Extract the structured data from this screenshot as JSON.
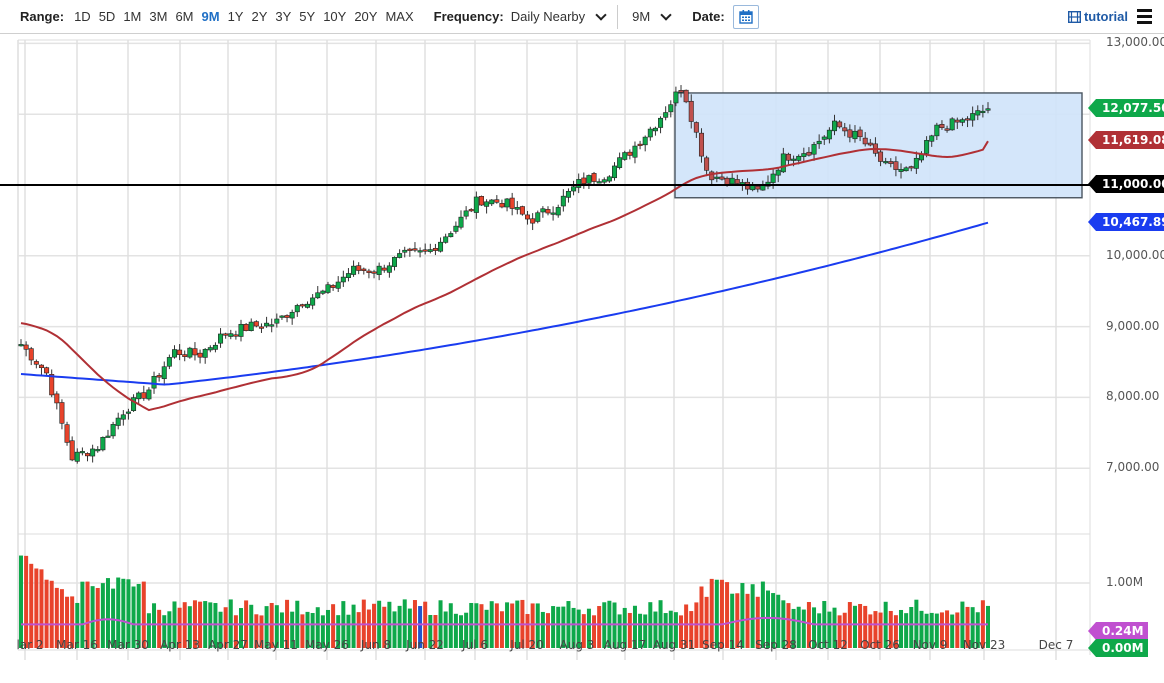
{
  "toolbar": {
    "range_label": "Range:",
    "ranges": [
      "1D",
      "5D",
      "1M",
      "3M",
      "6M",
      "9M",
      "1Y",
      "2Y",
      "3Y",
      "5Y",
      "10Y",
      "20Y",
      "MAX"
    ],
    "active_range": "9M",
    "frequency_label": "Frequency:",
    "frequency_value": "Daily Nearby",
    "period_value": "9M",
    "date_label": "Date:",
    "tutorial_label": "tutorial",
    "icons": {
      "calendar": "calendar-icon",
      "tutorial": "film-icon",
      "menu": "hamburger-menu-icon"
    }
  },
  "colors": {
    "up": "#0ea84a",
    "down": "#e8432b",
    "ma_short": "#b03035",
    "ma_long": "#1a3cf0",
    "support_line": "#000000",
    "box_fill": "#cfe3fa",
    "box_border": "#4a5560",
    "volume_avg": "#c050d0",
    "last_price_tag": "#0ea84a",
    "ma_short_tag": "#b03035",
    "support_tag": "#000000",
    "ma_long_tag": "#1a3cf0",
    "vol_avg_tag": "#c050d0",
    "vol_tag": "#0ea84a"
  },
  "chart_data": {
    "type": "candlestick",
    "title": "",
    "xlabel": "",
    "ylabel": "",
    "ylim": [
      6500,
      13000
    ],
    "y_ticks": [
      "13,000.00",
      "12,000.00",
      "11,000.00",
      "10,000.00",
      "9,000.00",
      "8,000.00",
      "7,000.00"
    ],
    "x_ticks": [
      "Mar 2",
      "Mar 16",
      "Mar 30",
      "Apr 13",
      "Apr 27",
      "May 11",
      "May 26",
      "Jun 8",
      "Jun 22",
      "Jul 6",
      "Jul 20",
      "Aug 3",
      "Aug 17",
      "Aug 31",
      "Sep 14",
      "Sep 28",
      "Oct 12",
      "Oct 26",
      "Nov 9",
      "Nov 23",
      "Dec 7"
    ],
    "grid": true,
    "price_tags": {
      "last_price": "12,077.50",
      "ma_short": "11,619.08",
      "support": "11,000.00",
      "ma_long": "10,467.89"
    },
    "support_level": 11000,
    "range_box": {
      "start": "Aug 31",
      "end": "Dec 10",
      "low": 10820,
      "high": 12300
    },
    "close_series_weekly": [
      {
        "date": "Mar 2",
        "close": 8750
      },
      {
        "date": "Mar 9",
        "close": 8350
      },
      {
        "date": "Mar 16",
        "close": 7150
      },
      {
        "date": "Mar 23",
        "close": 7300
      },
      {
        "date": "Mar 30",
        "close": 7800
      },
      {
        "date": "Apr 6",
        "close": 8100
      },
      {
        "date": "Apr 13",
        "close": 8650
      },
      {
        "date": "Apr 20",
        "close": 8600
      },
      {
        "date": "Apr 27",
        "close": 8900
      },
      {
        "date": "May 4",
        "close": 9000
      },
      {
        "date": "May 11",
        "close": 9050
      },
      {
        "date": "May 18",
        "close": 9350
      },
      {
        "date": "May 26",
        "close": 9500
      },
      {
        "date": "Jun 1",
        "close": 9800
      },
      {
        "date": "Jun 8",
        "close": 9800
      },
      {
        "date": "Jun 15",
        "close": 10000
      },
      {
        "date": "Jun 22",
        "close": 10050
      },
      {
        "date": "Jun 29",
        "close": 10400
      },
      {
        "date": "Jul 6",
        "close": 10800
      },
      {
        "date": "Jul 13",
        "close": 10750
      },
      {
        "date": "Jul 20",
        "close": 10500
      },
      {
        "date": "Jul 27",
        "close": 10700
      },
      {
        "date": "Aug 3",
        "close": 11050
      },
      {
        "date": "Aug 10",
        "close": 11150
      },
      {
        "date": "Aug 17",
        "close": 11500
      },
      {
        "date": "Aug 24",
        "close": 11900
      },
      {
        "date": "Aug 31",
        "close": 12400
      },
      {
        "date": "Sep 7",
        "close": 11150
      },
      {
        "date": "Sep 14",
        "close": 11050
      },
      {
        "date": "Sep 21",
        "close": 10900
      },
      {
        "date": "Sep 28",
        "close": 11400
      },
      {
        "date": "Oct 5",
        "close": 11500
      },
      {
        "date": "Oct 12",
        "close": 11850
      },
      {
        "date": "Oct 19",
        "close": 11650
      },
      {
        "date": "Oct 26",
        "close": 11250
      },
      {
        "date": "Nov 2",
        "close": 11200
      },
      {
        "date": "Nov 9",
        "close": 11800
      },
      {
        "date": "Nov 16",
        "close": 11900
      },
      {
        "date": "Nov 23",
        "close": 12077.5
      }
    ],
    "series": [
      {
        "name": "Moving Average (short)",
        "last": 11619.08
      },
      {
        "name": "Moving Average (long)",
        "last": 10467.89
      }
    ],
    "volume": {
      "y_ticks": [
        "1.00M"
      ],
      "avg_tag": "0.24M",
      "last_tag": "0.00M",
      "peak_early": 1.4,
      "peak_sep": 1.05,
      "typical": 0.5,
      "avg_level": 0.24
    }
  }
}
